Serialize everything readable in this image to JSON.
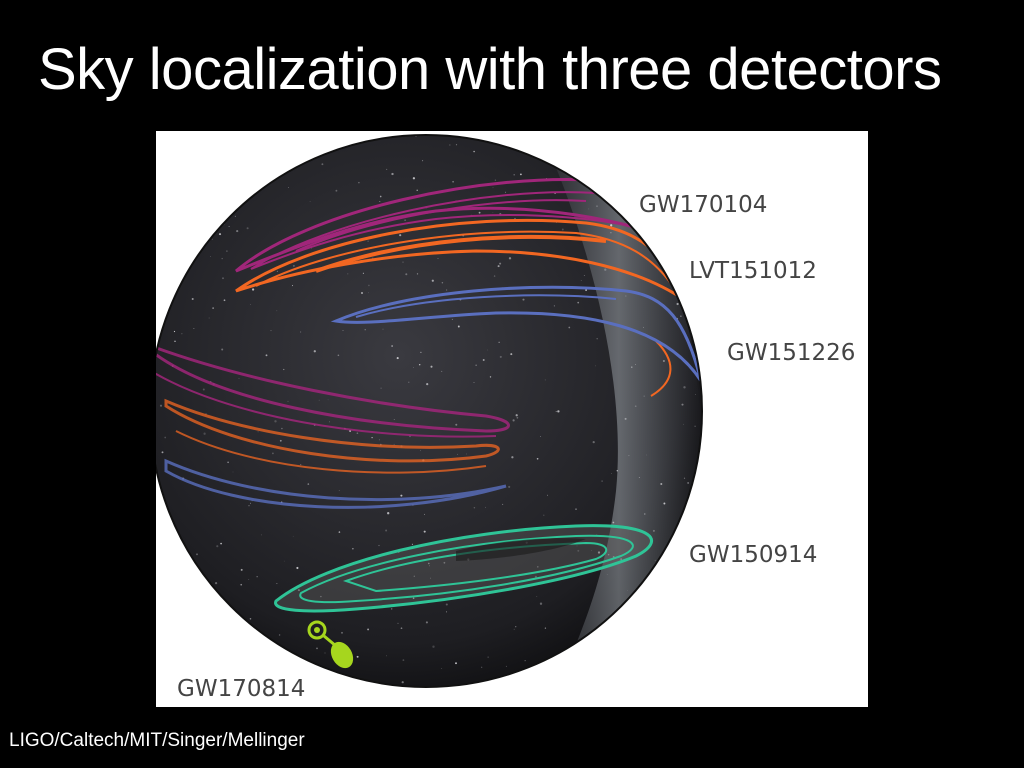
{
  "slide": {
    "title": "Sky localization with three detectors",
    "credit": "LIGO/Caltech/MIT/Singer/Mellinger"
  },
  "figure": {
    "sky_colors": {
      "background": "#2a2a2e",
      "milky_way": "#8a8f96"
    },
    "labels": {
      "gw170104": "GW170104",
      "lvt151012": "LVT151012",
      "gw151226": "GW151226",
      "gw150914": "GW150914",
      "gw170814": "GW170814"
    },
    "contour_colors": {
      "gw170104": "#a0267a",
      "lvt151012": "#f26722",
      "gw151226": "#5a6fbf",
      "gw150914": "#2fc497",
      "gw170814": "#a6d61e"
    }
  }
}
